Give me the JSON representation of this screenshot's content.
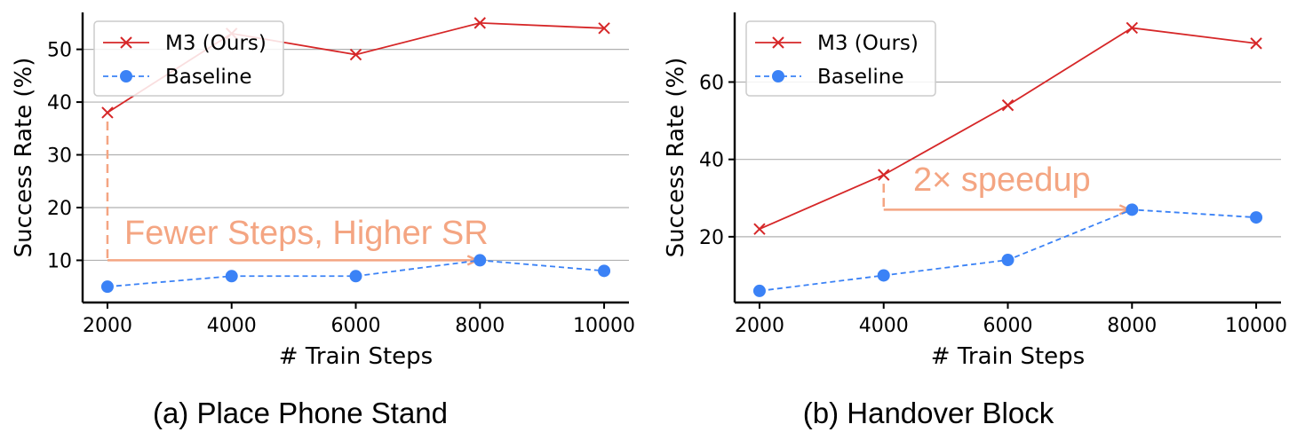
{
  "colors": {
    "m3": "#d62728",
    "baseline": "#3b82f6",
    "annotation": "#f4a582",
    "grid": "#b0b0b0"
  },
  "chart_data": [
    {
      "type": "line",
      "caption": "(a) Place Phone Stand",
      "xlabel": "# Train Steps",
      "ylabel": "Success Rate (%)",
      "x": [
        2000,
        4000,
        6000,
        8000,
        10000
      ],
      "xlim": [
        1600,
        10400
      ],
      "ylim": [
        2,
        57
      ],
      "yticks": [
        10,
        20,
        30,
        40,
        50
      ],
      "grid": "horizontal",
      "legend": "top-left",
      "series": [
        {
          "name": "M3 (Ours)",
          "values": [
            38,
            53,
            49,
            55,
            54
          ],
          "style": "solid",
          "marker": "x"
        },
        {
          "name": "Baseline",
          "values": [
            5,
            7,
            7,
            10,
            8
          ],
          "style": "dashed",
          "marker": "circle"
        }
      ],
      "annotation": {
        "text": "Fewer Steps, Higher SR",
        "from": [
          2000,
          38
        ],
        "corner": [
          2000,
          10
        ],
        "to": [
          8000,
          10
        ]
      }
    },
    {
      "type": "line",
      "caption": "(b) Handover Block",
      "xlabel": "# Train Steps",
      "ylabel": "Success Rate (%)",
      "x": [
        2000,
        4000,
        6000,
        8000,
        10000
      ],
      "xlim": [
        1600,
        10400
      ],
      "ylim": [
        3,
        78
      ],
      "yticks": [
        20,
        40,
        60
      ],
      "grid": "horizontal",
      "legend": "top-left",
      "series": [
        {
          "name": "M3 (Ours)",
          "values": [
            22,
            36,
            54,
            74,
            70
          ],
          "style": "solid",
          "marker": "x"
        },
        {
          "name": "Baseline",
          "values": [
            6,
            10,
            14,
            27,
            25
          ],
          "style": "dashed",
          "marker": "circle"
        }
      ],
      "annotation": {
        "text": "2× speedup",
        "from": [
          4000,
          36
        ],
        "corner": [
          4000,
          27
        ],
        "to": [
          8000,
          27
        ]
      }
    }
  ]
}
